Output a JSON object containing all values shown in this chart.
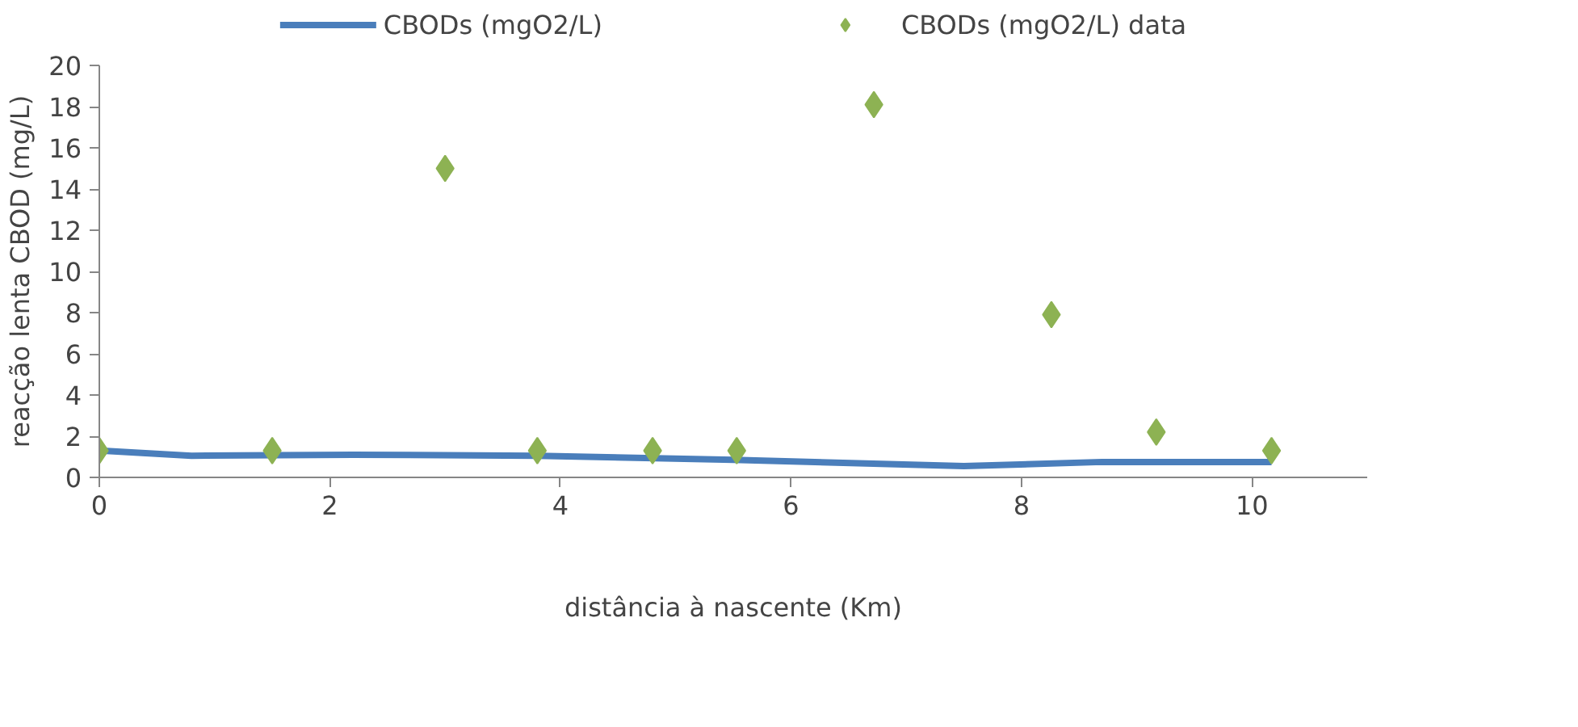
{
  "chart_data": {
    "type": "scatter",
    "xlabel": "distância à nascente (Km)",
    "ylabel": "reacção lenta CBOD (mg/L)",
    "series": [
      {
        "name": "CBODs (mgO2/L)",
        "type": "line",
        "color": "#4a7ebb",
        "marker": "none",
        "line_style": "solid",
        "x": [
          0,
          0.8,
          2.2,
          3.8,
          5.5,
          7.5,
          8.7,
          10.17
        ],
        "values": [
          1.3,
          1.05,
          1.1,
          1.05,
          0.85,
          0.55,
          0.75,
          0.75
        ]
      },
      {
        "name": "CBODs (mgO2/L) data",
        "color": "#8db253",
        "marker": "diamond",
        "x": [
          0,
          1.5,
          3.0,
          3.8,
          4.8,
          5.53,
          6.72,
          8.26,
          9.17,
          10.17
        ],
        "values": [
          1.3,
          1.3,
          15,
          1.3,
          1.3,
          1.3,
          18.1,
          7.9,
          2.2,
          1.3
        ]
      }
    ],
    "xlim": [
      0,
      11
    ],
    "xticks": [
      0,
      2,
      4,
      6,
      8,
      10
    ],
    "ylim": [
      0,
      20
    ],
    "yticks": [
      0,
      2,
      4,
      6,
      8,
      10,
      12,
      14,
      16,
      18,
      20
    ],
    "grid": false,
    "legend": "top"
  }
}
